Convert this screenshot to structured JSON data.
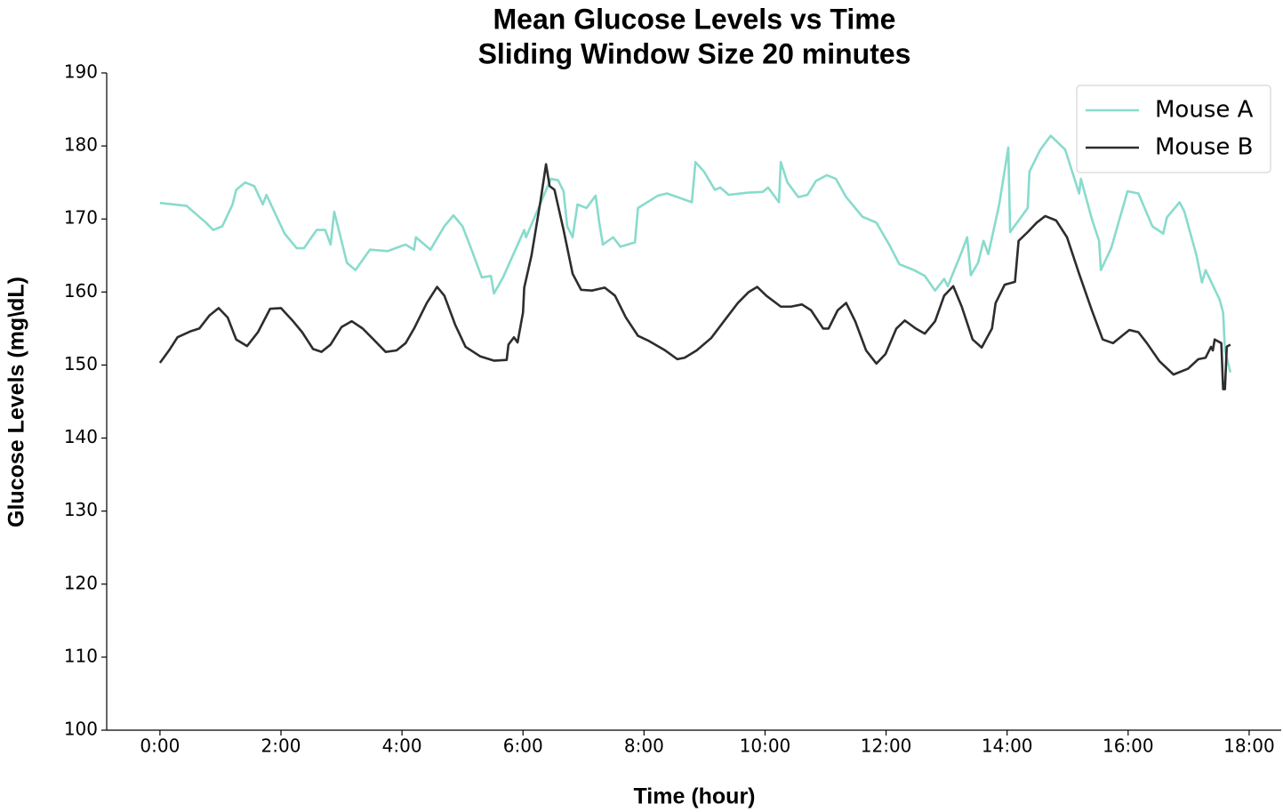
{
  "chart_data": {
    "type": "line",
    "title": "Mean Glucose Levels vs Time",
    "subtitle": "Sliding Window Size 20 minutes",
    "x_label": "Time (hour)",
    "y_label": "Glucose Levels (mg\\dL)",
    "xlim": [
      -0.88,
      18.53
    ],
    "ylim": [
      100,
      190
    ],
    "xticks": [
      {
        "value": 0,
        "label": "0:00"
      },
      {
        "value": 2,
        "label": "2:00"
      },
      {
        "value": 4,
        "label": "4:00"
      },
      {
        "value": 6,
        "label": "6:00"
      },
      {
        "value": 8,
        "label": "8:00"
      },
      {
        "value": 10,
        "label": "10:00"
      },
      {
        "value": 12,
        "label": "12:00"
      },
      {
        "value": 14,
        "label": "14:00"
      },
      {
        "value": 16,
        "label": "16:00"
      },
      {
        "value": 18,
        "label": "18:00"
      }
    ],
    "yticks": [
      100,
      110,
      120,
      130,
      140,
      150,
      160,
      170,
      180,
      190
    ],
    "legend": "upper right",
    "series": [
      {
        "name": "Mouse A",
        "color": "#88dbcd",
        "x": [
          0,
          0.44,
          0.76,
          0.88,
          1.03,
          1.2,
          1.26,
          1.41,
          1.56,
          1.7,
          1.76,
          2.06,
          2.26,
          2.38,
          2.59,
          2.73,
          2.82,
          2.88,
          3.09,
          3.23,
          3.47,
          3.76,
          4.06,
          4.2,
          4.23,
          4.47,
          4.7,
          4.85,
          5.0,
          5.14,
          5.32,
          5.47,
          5.52,
          5.67,
          6.02,
          6.05,
          6.23,
          6.46,
          6.58,
          6.67,
          6.73,
          6.82,
          6.9,
          7.05,
          7.2,
          7.26,
          7.32,
          7.49,
          7.61,
          7.85,
          7.9,
          8.23,
          8.38,
          8.79,
          8.85,
          8.99,
          9.17,
          9.26,
          9.4,
          9.7,
          9.96,
          10.05,
          10.23,
          10.26,
          10.37,
          10.55,
          10.7,
          10.84,
          11.02,
          11.17,
          11.34,
          11.61,
          11.84,
          12.05,
          12.22,
          12.46,
          12.64,
          12.81,
          12.96,
          13.02,
          13.25,
          13.34,
          13.4,
          13.52,
          13.61,
          13.69,
          13.87,
          14.02,
          14.05,
          14.34,
          14.37,
          14.55,
          14.72,
          14.96,
          15.19,
          15.22,
          15.4,
          15.52,
          15.55,
          15.72,
          15.99,
          16.17,
          16.4,
          16.58,
          16.64,
          16.85,
          16.93,
          17.13,
          17.22,
          17.28,
          17.51,
          17.57,
          17.6,
          17.69
        ],
        "values": [
          172.2,
          171.8,
          169.5,
          168.5,
          169,
          172,
          174,
          175,
          174.5,
          172,
          173.3,
          168,
          166,
          166,
          168.5,
          168.5,
          166.5,
          171,
          164,
          163,
          165.8,
          165.6,
          166.5,
          165.8,
          167.5,
          165.8,
          169,
          170.5,
          169,
          166,
          162,
          162.2,
          159.8,
          162,
          168.5,
          167.5,
          171,
          175.5,
          175.3,
          173.8,
          169,
          167.5,
          172,
          171.5,
          173.2,
          169.5,
          166.5,
          167.5,
          166.2,
          166.8,
          171.5,
          173.2,
          173.5,
          172.3,
          177.8,
          176.5,
          174,
          174.3,
          173.3,
          173.6,
          173.7,
          174.3,
          172.3,
          177.8,
          175,
          173,
          173.3,
          175.2,
          176,
          175.5,
          173,
          170.3,
          169.5,
          166.5,
          163.8,
          163,
          162.2,
          160.2,
          161.8,
          160.8,
          165.5,
          167.5,
          162.3,
          164,
          167,
          165.2,
          172,
          179.8,
          168.2,
          171.5,
          176.5,
          179.5,
          181.4,
          179.5,
          173.5,
          175.5,
          170,
          167,
          163,
          166,
          173.8,
          173.5,
          169,
          168,
          170.2,
          172.3,
          171,
          165,
          161.3,
          163,
          159,
          157.2,
          152,
          149
        ]
      },
      {
        "name": "Mouse B",
        "color": "#2d2d2d",
        "x": [
          0,
          0.15,
          0.29,
          0.5,
          0.65,
          0.82,
          0.97,
          1.12,
          1.26,
          1.44,
          1.62,
          1.82,
          2.0,
          2.2,
          2.35,
          2.53,
          2.67,
          2.82,
          3.0,
          3.17,
          3.35,
          3.53,
          3.73,
          3.91,
          4.06,
          4.2,
          4.41,
          4.58,
          4.7,
          4.88,
          5.05,
          5.29,
          5.52,
          5.73,
          5.76,
          5.85,
          5.91,
          6.0,
          6.02,
          6.14,
          6.29,
          6.38,
          6.44,
          6.52,
          6.67,
          6.82,
          6.96,
          7.14,
          7.35,
          7.52,
          7.7,
          7.9,
          8.08,
          8.35,
          8.55,
          8.67,
          8.87,
          9.11,
          9.32,
          9.55,
          9.73,
          9.87,
          10.02,
          10.26,
          10.43,
          10.61,
          10.76,
          10.96,
          11.05,
          11.2,
          11.34,
          11.49,
          11.67,
          11.84,
          11.99,
          12.17,
          12.31,
          12.49,
          12.64,
          12.81,
          12.96,
          13.11,
          13.25,
          13.43,
          13.58,
          13.75,
          13.81,
          13.96,
          14.13,
          14.19,
          14.34,
          14.49,
          14.63,
          14.81,
          14.99,
          15.19,
          15.4,
          15.58,
          15.75,
          16.02,
          16.17,
          16.31,
          16.52,
          16.75,
          16.99,
          17.16,
          17.28,
          17.37,
          17.4,
          17.43,
          17.54,
          17.57,
          17.6,
          17.63,
          17.69
        ],
        "values": [
          150.3,
          152,
          153.8,
          154.6,
          155,
          156.8,
          157.8,
          156.5,
          153.5,
          152.6,
          154.5,
          157.7,
          157.8,
          156,
          154.5,
          152.2,
          151.8,
          152.8,
          155.2,
          156,
          155,
          153.5,
          151.8,
          152,
          153,
          155,
          158.5,
          160.7,
          159.5,
          155.5,
          152.5,
          151.2,
          150.6,
          150.7,
          152.8,
          153.8,
          153.1,
          157.2,
          160.6,
          165,
          172.5,
          177.5,
          174.5,
          174,
          168.5,
          162.5,
          160.3,
          160.2,
          160.6,
          159.5,
          156.5,
          154,
          153.3,
          152,
          150.8,
          151,
          152,
          153.7,
          156,
          158.5,
          160,
          160.7,
          159.5,
          158,
          158,
          158.3,
          157.5,
          155,
          155,
          157.5,
          158.5,
          156,
          152,
          150.2,
          151.5,
          155,
          156.1,
          155,
          154.3,
          156,
          159.5,
          160.8,
          158,
          153.5,
          152.4,
          155,
          158.5,
          161,
          161.4,
          167,
          168.2,
          169.5,
          170.4,
          169.8,
          167.5,
          162.5,
          157.5,
          153.5,
          153,
          154.8,
          154.5,
          153,
          150.5,
          148.7,
          149.5,
          150.8,
          151,
          152.5,
          152,
          153.5,
          153,
          146.7,
          146.7,
          152.5,
          152.8
        ]
      }
    ]
  }
}
